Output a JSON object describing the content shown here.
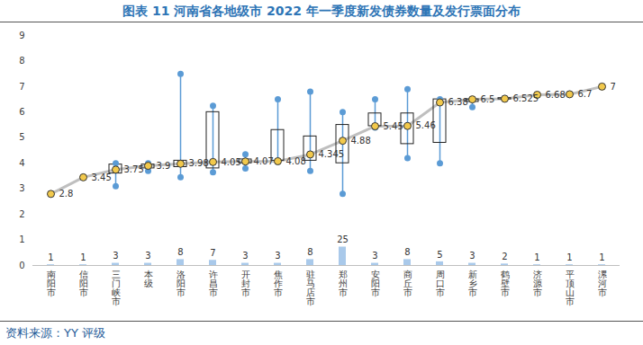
{
  "chart_data": {
    "type": "box",
    "title": "图表 11 河南省各地级市 2022 年一季度新发债券数量及发行票面分布",
    "source": "资料来源：YY 评级",
    "categories": [
      "南阳市",
      "信阳市",
      "三门峡市",
      "本级",
      "洛阳市",
      "许昌市",
      "开封市",
      "焦作市",
      "驻马店市",
      "郑州市",
      "安阳市",
      "商丘市",
      "周口市",
      "新乡市",
      "鹤壁市",
      "济源市",
      "平顶山市",
      "漯河市"
    ],
    "min": [
      2.8,
      3.45,
      3.1,
      3.7,
      3.45,
      3.65,
      3.8,
      4.05,
      3.7,
      2.8,
      5.4,
      4.2,
      4.0,
      6.2,
      6.5,
      6.68,
      6.7,
      7
    ],
    "q1": [
      2.8,
      3.45,
      3.6,
      3.8,
      3.85,
      3.8,
      4.0,
      4.1,
      4.1,
      4.0,
      5.45,
      4.75,
      4.8,
      6.4,
      6.5,
      6.68,
      6.7,
      7
    ],
    "median": [
      2.8,
      3.45,
      3.75,
      3.9,
      3.98,
      4.05,
      4.07,
      4.08,
      4.345,
      4.88,
      5.45,
      5.46,
      6.38,
      6.5,
      6.525,
      6.68,
      6.7,
      7
    ],
    "q3": [
      2.8,
      3.45,
      3.95,
      3.95,
      4.1,
      6.0,
      4.15,
      5.3,
      5.05,
      5.5,
      5.95,
      5.95,
      6.5,
      6.5,
      6.55,
      6.68,
      6.7,
      7
    ],
    "max": [
      2.8,
      3.45,
      4.0,
      4.0,
      7.5,
      6.25,
      4.35,
      6.5,
      6.8,
      6.0,
      6.5,
      6.9,
      6.5,
      6.5,
      6.55,
      6.68,
      6.7,
      7
    ],
    "color": "#5b9bd5",
    "median_color": "#f2c94c",
    "line_color": "#bfbfbf",
    "data_labels": true,
    "grid": false,
    "ylim": [
      0,
      9
    ],
    "yticks": [
      0,
      1,
      2,
      3,
      4,
      5,
      6,
      7,
      8,
      9
    ],
    "y2lim": [
      0,
      312
    ],
    "series": [
      {
        "type": "bar",
        "axis": "y2",
        "color": "#a9c9ea",
        "data_labels": true,
        "values": [
          1,
          1,
          3,
          3,
          8,
          7,
          3,
          3,
          8,
          25,
          3,
          8,
          5,
          3,
          2,
          1,
          1,
          1
        ]
      }
    ]
  }
}
